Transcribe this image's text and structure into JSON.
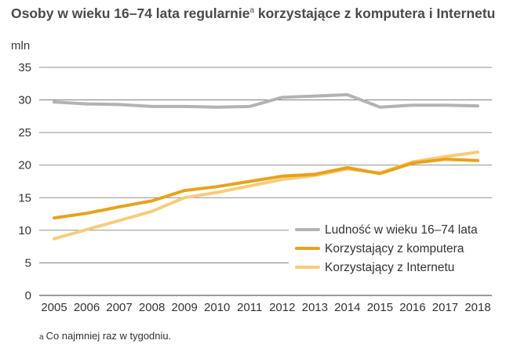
{
  "title": {
    "part1": "Osoby w wieku 16–74 lata regularnie",
    "superscript": "a",
    "part2": " korzystające z komputera i Internetu"
  },
  "footnote": {
    "marker": "a",
    "text": "Co najmniej raz w tygodniu."
  },
  "chart_data": {
    "type": "line",
    "title": "Osoby w wieku 16–74 lata regularnie korzystające z komputera i Internetu",
    "ylabel": "mln",
    "xlabel": "",
    "ylim": [
      0,
      35
    ],
    "yticks": [
      0,
      5,
      10,
      15,
      20,
      25,
      30,
      35
    ],
    "grid": true,
    "legend_position": "bottom-right",
    "x": [
      "2005",
      "2006",
      "2007",
      "2008",
      "2009",
      "2010",
      "2011",
      "2012",
      "2013",
      "2014",
      "2015",
      "2016",
      "2017",
      "2018"
    ],
    "series": [
      {
        "name": "Ludność w wieku 16–74 lata",
        "color": "#b3b3b3",
        "values": [
          29.7,
          29.4,
          29.3,
          29.0,
          29.0,
          28.9,
          29.0,
          30.4,
          30.6,
          30.8,
          28.9,
          29.2,
          29.2,
          29.1
        ]
      },
      {
        "name": "Korzystający z komputera",
        "color": "#e8a21a",
        "values": [
          11.9,
          12.6,
          13.6,
          14.5,
          16.1,
          16.7,
          17.5,
          18.3,
          18.6,
          19.6,
          18.7,
          20.3,
          20.9,
          20.7
        ]
      },
      {
        "name": "Korzystający z Internetu",
        "color": "#f8cc7a",
        "values": [
          8.7,
          10.1,
          11.5,
          12.9,
          15.0,
          15.8,
          16.8,
          17.8,
          18.4,
          19.4,
          18.8,
          20.5,
          21.3,
          22.0
        ]
      }
    ]
  }
}
